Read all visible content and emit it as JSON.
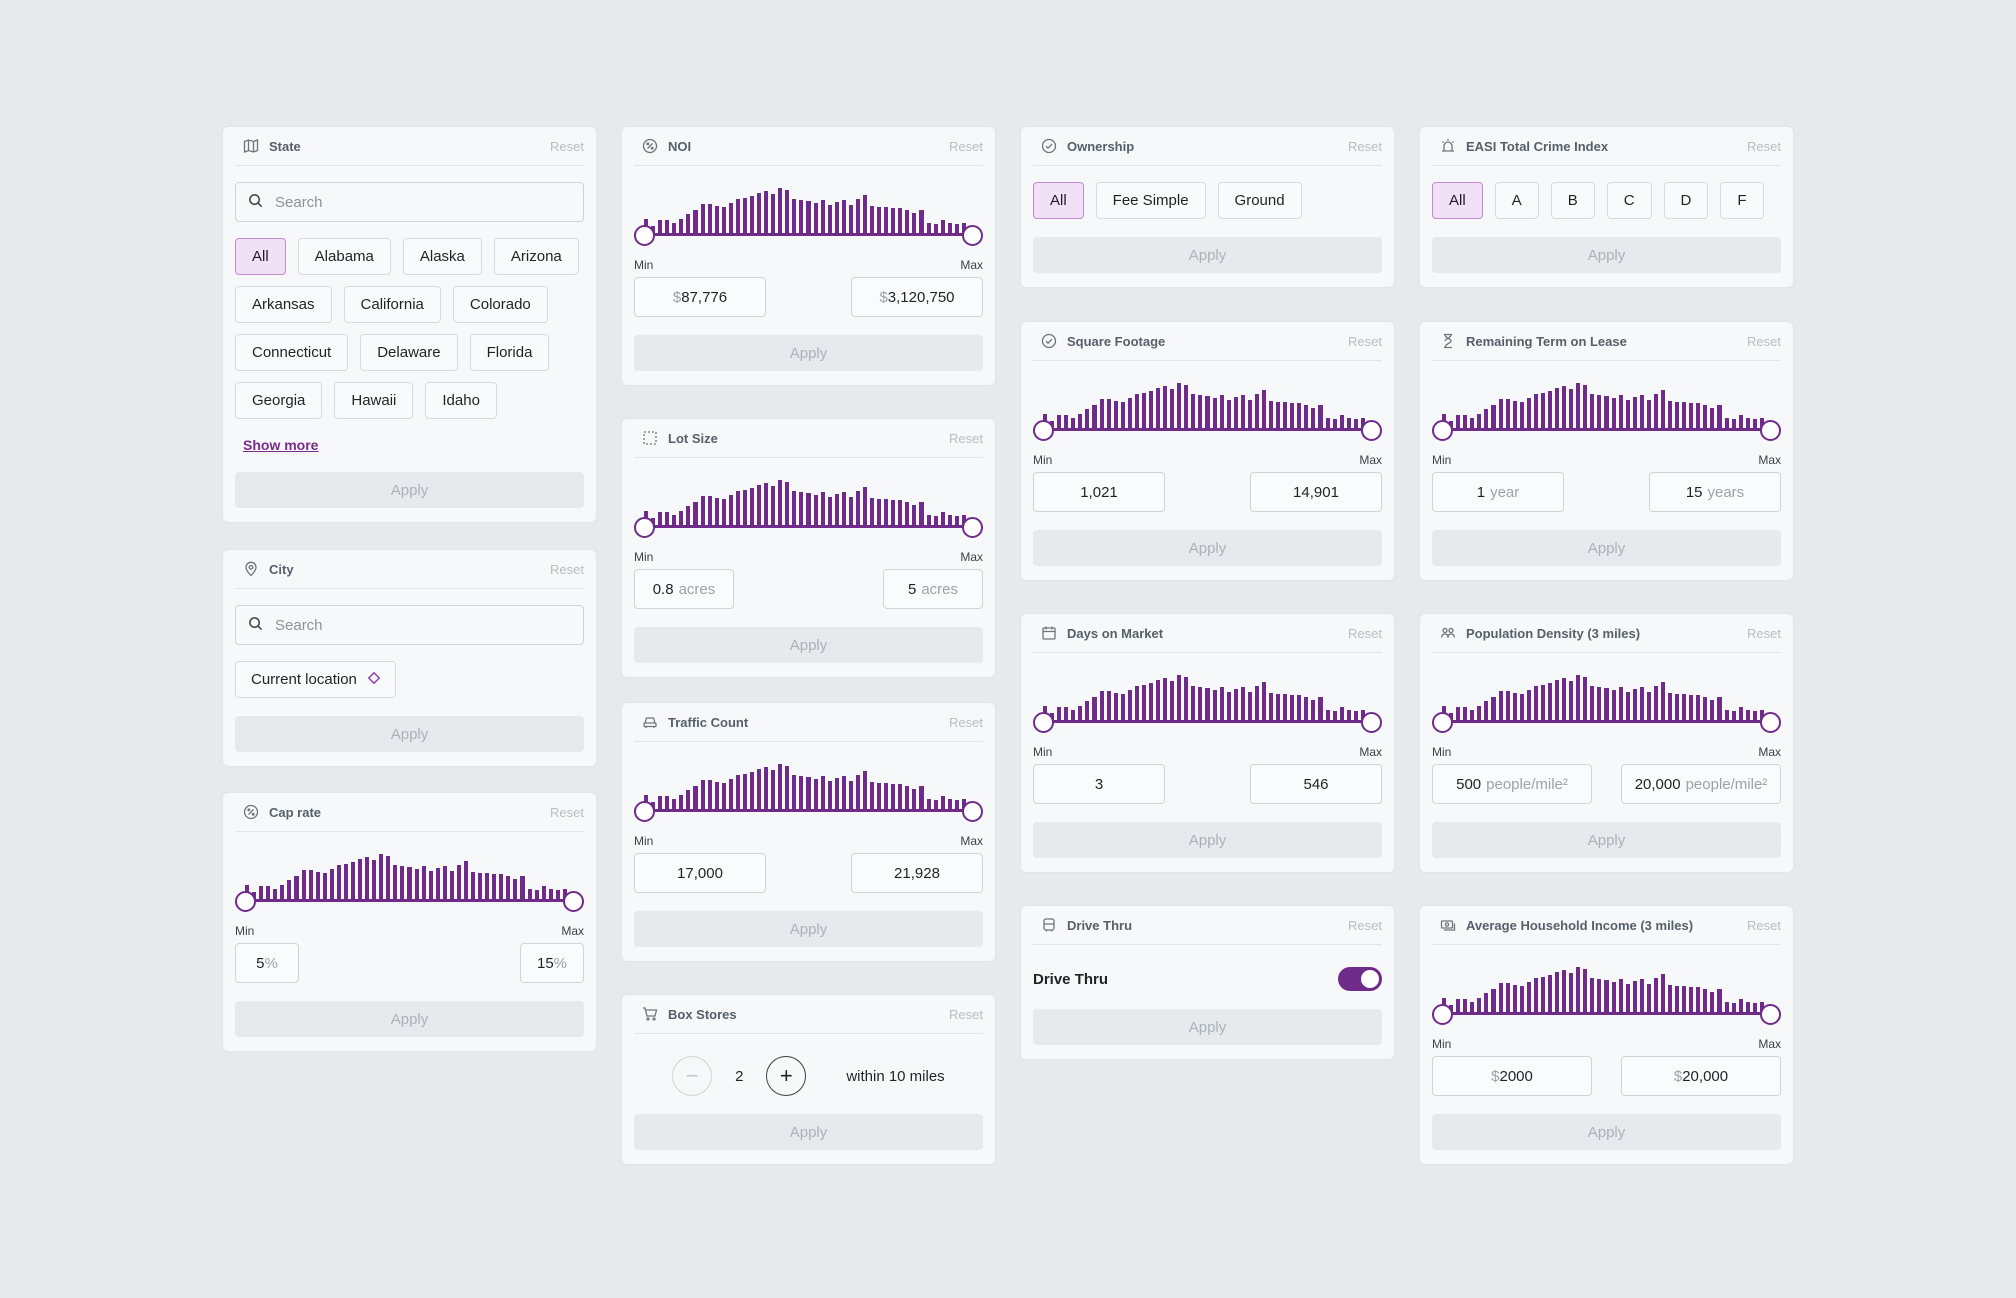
{
  "common": {
    "reset": "Reset",
    "apply": "Apply",
    "min": "Min",
    "max": "Max",
    "search_placeholder": "Search"
  },
  "colors": {
    "accent": "#6f2b8a",
    "background": "#e7eaed",
    "card": "#f7f8f9"
  },
  "state": {
    "title": "State",
    "icon": "map-icon",
    "chips": [
      "All",
      "Alabama",
      "Alaska",
      "Arizona",
      "Arkansas",
      "California",
      "Colorado",
      "Connecticut",
      "Delaware",
      "Florida",
      "Georgia",
      "Hawaii",
      "Idaho"
    ],
    "selected": "All",
    "show_more": "Show more"
  },
  "city": {
    "title": "City",
    "icon": "location-pin-icon",
    "current_location": "Current location"
  },
  "cap_rate": {
    "title": "Cap rate",
    "icon": "percent-icon",
    "min_value": "5",
    "min_unit": "%",
    "max_value": "15",
    "max_unit": "%"
  },
  "noi": {
    "title": "NOI",
    "icon": "dollar-circle-icon",
    "min_prefix": "$",
    "min_value": "87,776",
    "max_prefix": "$",
    "max_value": "3,120,750"
  },
  "lot_size": {
    "title": "Lot Size",
    "icon": "dashed-square-icon",
    "min_value": "0.8",
    "min_unit": "acres",
    "max_value": "5",
    "max_unit": "acres"
  },
  "traffic_count": {
    "title": "Traffic Count",
    "icon": "car-icon",
    "min_value": "17,000",
    "max_value": "21,928"
  },
  "box_stores": {
    "title": "Box Stores",
    "icon": "shopping-cart-icon",
    "count": "2",
    "note": "within 10 miles"
  },
  "ownership": {
    "title": "Ownership",
    "icon": "check-circle-icon",
    "chips": [
      "All",
      "Fee Simple",
      "Ground"
    ],
    "selected": "All"
  },
  "square_footage": {
    "title": "Square Footage",
    "icon": "check-circle-icon",
    "min_value": "1,021",
    "max_value": "14,901"
  },
  "days_on_market": {
    "title": "Days on Market",
    "icon": "calendar-icon",
    "min_value": "3",
    "max_value": "546"
  },
  "drive_thru": {
    "title": "Drive Thru",
    "icon": "drive-thru-icon",
    "label": "Drive Thru",
    "enabled": true
  },
  "crime_index": {
    "title": "EASI Total Crime Index",
    "icon": "alarm-icon",
    "chips": [
      "All",
      "A",
      "B",
      "C",
      "D",
      "F"
    ],
    "selected": "All"
  },
  "remaining_term": {
    "title": "Remaining Term on Lease",
    "icon": "hourglass-icon",
    "min_value": "1",
    "min_unit": "year",
    "max_value": "15",
    "max_unit": "years"
  },
  "population_density": {
    "title": "Population Density (3 miles)",
    "icon": "people-icon",
    "min_value": "500",
    "min_unit": "people/mile²",
    "max_value": "20,000",
    "max_unit": "people/mile²"
  },
  "household_income": {
    "title": "Average Household Income (3 miles)",
    "icon": "cash-icon",
    "min_prefix": "$",
    "min_value": "2000",
    "max_prefix": "$",
    "max_value": "20,000"
  },
  "histogram": [
    0.32,
    0.18,
    0.3,
    0.3,
    0.25,
    0.32,
    0.42,
    0.5,
    0.62,
    0.62,
    0.58,
    0.56,
    0.65,
    0.72,
    0.75,
    0.78,
    0.85,
    0.88,
    0.82,
    0.95,
    0.9,
    0.72,
    0.7,
    0.68,
    0.65,
    0.7,
    0.6,
    0.66,
    0.7,
    0.6,
    0.72,
    0.8,
    0.58,
    0.56,
    0.56,
    0.55,
    0.55,
    0.5,
    0.45,
    0.5,
    0.25,
    0.22,
    0.3,
    0.25,
    0.22,
    0.25,
    0.12
  ]
}
